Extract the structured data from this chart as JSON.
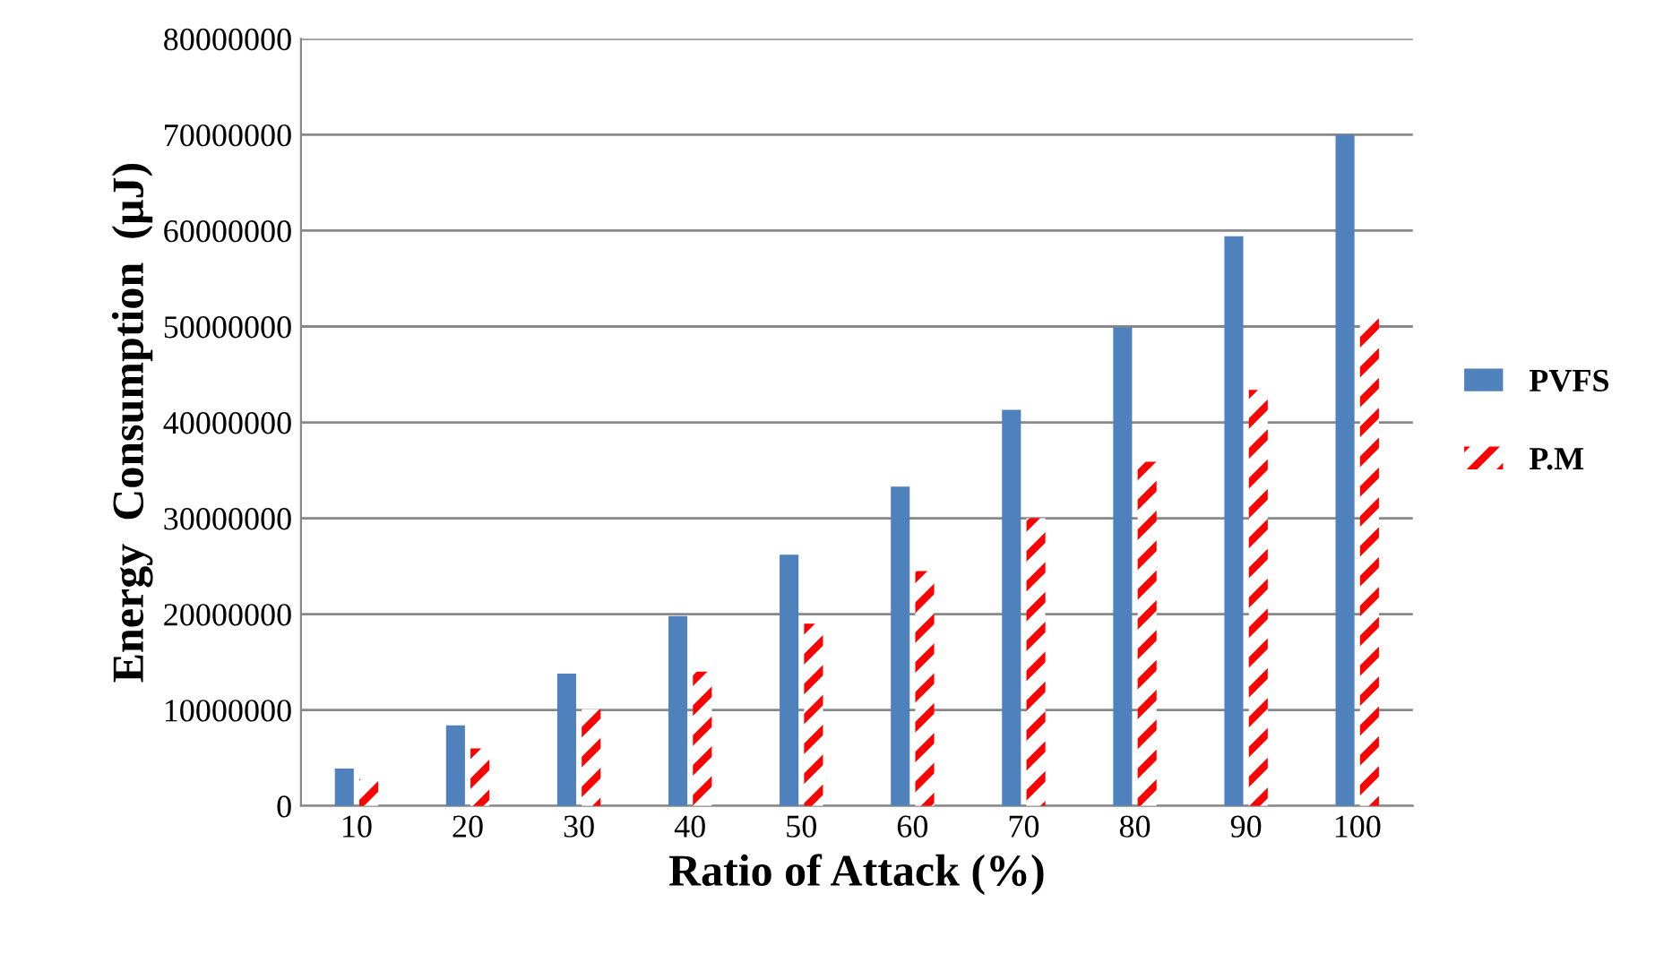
{
  "chart_data": {
    "type": "bar",
    "xlabel": "Ratio of Attack (%)",
    "ylabel": "Energy  Consumption  (µJ)",
    "categories": [
      "10",
      "20",
      "30",
      "40",
      "50",
      "60",
      "70",
      "80",
      "90",
      "100"
    ],
    "series": [
      {
        "name": "PVFS",
        "color": "#4f81bd",
        "values": [
          3900000,
          8400000,
          13800000,
          19800000,
          26200000,
          33300000,
          41300000,
          49900000,
          59400000,
          70000000
        ]
      },
      {
        "name": "P.M",
        "color": "#ff0000",
        "values": [
          2800000,
          6000000,
          10100000,
          14000000,
          19000000,
          24500000,
          30000000,
          35900000,
          43400000,
          50800000
        ]
      }
    ],
    "ylim": [
      0,
      80000000
    ],
    "yticks": [
      {
        "value": 0,
        "label": "0"
      },
      {
        "value": 10000000,
        "label": "10000000"
      },
      {
        "value": 20000000,
        "label": "20000000"
      },
      {
        "value": 30000000,
        "label": "30000000"
      },
      {
        "value": 40000000,
        "label": "40000000"
      },
      {
        "value": 50000000,
        "label": "50000000"
      },
      {
        "value": 60000000,
        "label": "60000000"
      },
      {
        "value": 70000000,
        "label": "70000000"
      },
      {
        "value": 80000000,
        "label": "80000000"
      }
    ],
    "grid": "y",
    "legend": "right"
  }
}
